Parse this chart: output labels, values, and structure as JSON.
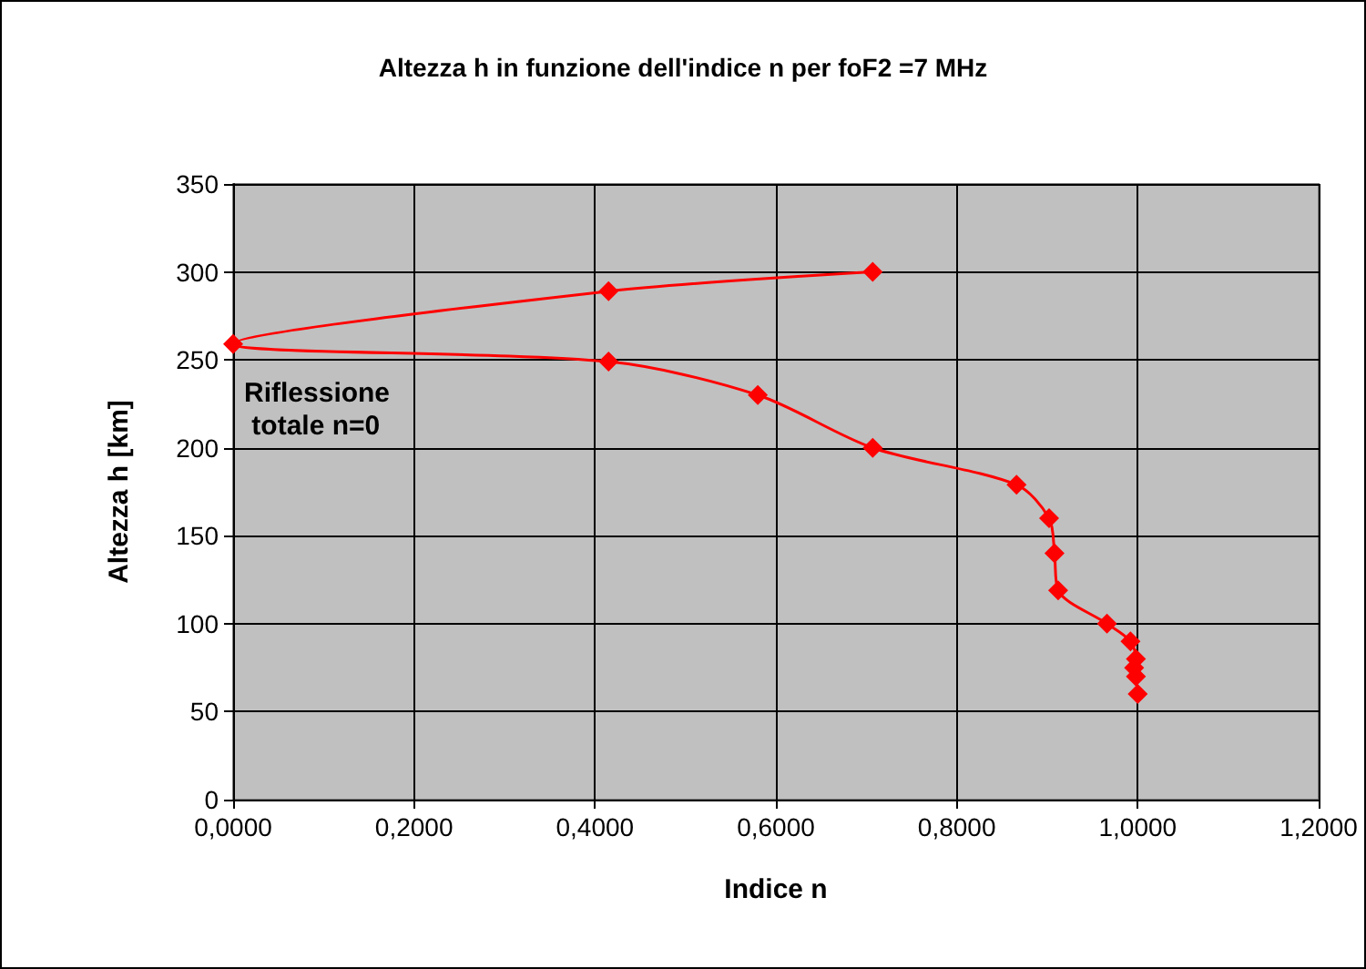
{
  "chart_data": {
    "type": "line",
    "title": "Altezza h in funzione dell'indice n per foF2 =7 MHz",
    "xlabel": "Indice n",
    "ylabel": "Altezza h [km]",
    "annotations": [
      "Riflessione totale n=0"
    ],
    "series": [
      {
        "color": "#ff0000",
        "x": [
          0.707,
          0.415,
          0,
          0.415,
          0.58,
          0.707,
          0.866,
          0.902,
          0.908,
          0.912,
          0.966,
          0.992,
          0.998,
          0.996,
          0.998,
          1.0
        ],
        "values": [
          300,
          289,
          259,
          249,
          230,
          200,
          179,
          160,
          140,
          119,
          100,
          90,
          80,
          75,
          70,
          60
        ]
      }
    ],
    "xlim": [
      0,
      1.2
    ],
    "xticks": [
      {
        "value": 0,
        "label": "0,0000"
      },
      {
        "value": 0.2,
        "label": "0,2000"
      },
      {
        "value": 0.4,
        "label": "0,4000"
      },
      {
        "value": 0.6,
        "label": "0,6000"
      },
      {
        "value": 0.8,
        "label": "0,8000"
      },
      {
        "value": 1.0,
        "label": "1,0000"
      },
      {
        "value": 1.2,
        "label": "1,2000"
      }
    ],
    "ylim": [
      0,
      350
    ],
    "yticks": [
      0,
      50,
      100,
      150,
      200,
      250,
      300,
      350
    ],
    "grid": true,
    "marker": "diamond",
    "line_style": "solid"
  }
}
